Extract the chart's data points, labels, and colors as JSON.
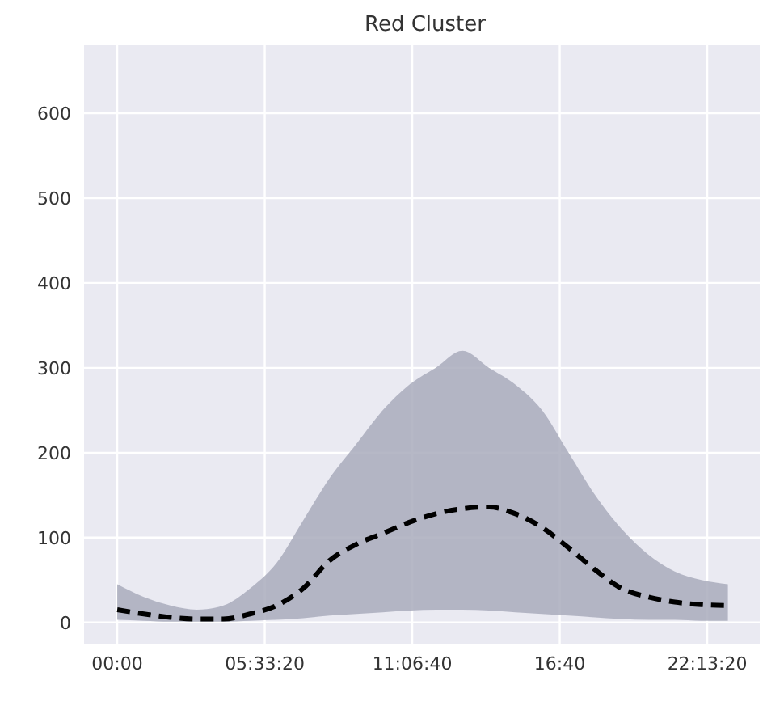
{
  "chart_data": {
    "type": "line",
    "title": "Red Cluster",
    "x": [
      0,
      1,
      2,
      3,
      4,
      5,
      6,
      7,
      8,
      9,
      10,
      11,
      12,
      13,
      14,
      15,
      16,
      17,
      18,
      19,
      20,
      21,
      22,
      23
    ],
    "series": [
      {
        "color": "#000000",
        "values": [
          15,
          10,
          6,
          4,
          4,
          10,
          20,
          40,
          73,
          92,
          105,
          118,
          128,
          134,
          136,
          128,
          112,
          88,
          62,
          40,
          30,
          24,
          21,
          20
        ],
        "lower": [
          3,
          2,
          1,
          1,
          1,
          2,
          3,
          5,
          8,
          10,
          12,
          14,
          15,
          15,
          14,
          12,
          10,
          8,
          6,
          4,
          3,
          3,
          2,
          2
        ],
        "upper": [
          45,
          30,
          20,
          15,
          20,
          40,
          70,
          120,
          170,
          210,
          250,
          280,
          300,
          320,
          300,
          280,
          250,
          200,
          150,
          110,
          80,
          60,
          50,
          45
        ]
      }
    ],
    "xlim": [
      -1.25,
      24.2
    ],
    "xticks": [
      {
        "value": 0,
        "label": "00:00"
      },
      {
        "value": 5.5556,
        "label": "05:33:20"
      },
      {
        "value": 11.1111,
        "label": "11:06:40"
      },
      {
        "value": 16.6667,
        "label": "16:40"
      },
      {
        "value": 22.2222,
        "label": "22:13:20"
      }
    ],
    "ylim": [
      -25,
      680
    ],
    "yticks": [
      0,
      100,
      200,
      300,
      400,
      500,
      600
    ],
    "grid": true,
    "marker": "none",
    "line_style": "dashed"
  }
}
